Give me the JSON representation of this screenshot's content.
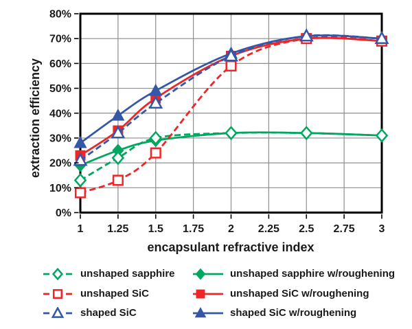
{
  "chart_data": {
    "type": "line",
    "title": "",
    "xlabel": "encapsulant refractive index",
    "ylabel": "extraction efficiency",
    "xlim": [
      1,
      3
    ],
    "ylim": [
      0,
      80
    ],
    "grid": true,
    "legend_position": "bottom",
    "x_tick_values": [
      1,
      1.25,
      1.5,
      1.75,
      2,
      2.25,
      2.5,
      2.75,
      3
    ],
    "x_tick_labels": [
      "1",
      "1.25",
      "1.5",
      "1.75",
      "2",
      "2.25",
      "2.5",
      "2.75",
      "3"
    ],
    "y_tick_values": [
      0,
      10,
      20,
      30,
      40,
      50,
      60,
      70,
      80
    ],
    "y_tick_labels": [
      "0%",
      "10%",
      "20%",
      "30%",
      "40%",
      "50%",
      "60%",
      "70%",
      "80%"
    ],
    "x": [
      1,
      1.25,
      1.5,
      2,
      2.5,
      3
    ],
    "series": [
      {
        "name": "unshaped sapphire",
        "color": "#00a75f",
        "line": "dashed",
        "marker": "diamond",
        "marker_fill": "open",
        "values": [
          13,
          22,
          30,
          32,
          32,
          31
        ]
      },
      {
        "name": "unshaped sapphire w/roughening",
        "color": "#00a75f",
        "line": "solid",
        "marker": "diamond",
        "marker_fill": "filled",
        "values": [
          19,
          25,
          29,
          32,
          32,
          31
        ]
      },
      {
        "name": "unshaped SiC",
        "color": "#ee2627",
        "line": "dashed",
        "marker": "square",
        "marker_fill": "open",
        "values": [
          8,
          13,
          24,
          59,
          70,
          69
        ]
      },
      {
        "name": "unshaped SiC w/roughening",
        "color": "#ee2627",
        "line": "solid",
        "marker": "square",
        "marker_fill": "filled",
        "values": [
          23,
          33,
          46,
          63,
          70,
          69
        ]
      },
      {
        "name": "shaped SiC",
        "color": "#3557a8",
        "line": "dashed",
        "marker": "triangle",
        "marker_fill": "open",
        "values": [
          21,
          32,
          44,
          63,
          71,
          70
        ]
      },
      {
        "name": "shaped SiC w/roughening",
        "color": "#3557a8",
        "line": "solid",
        "marker": "triangle",
        "marker_fill": "filled",
        "values": [
          28,
          39,
          49,
          64,
          71,
          70
        ]
      }
    ],
    "colors": {
      "background": "#ffffff",
      "axis_frame": "#000000",
      "grid": "#8d8d8d",
      "text": "#1a1a1a"
    }
  }
}
